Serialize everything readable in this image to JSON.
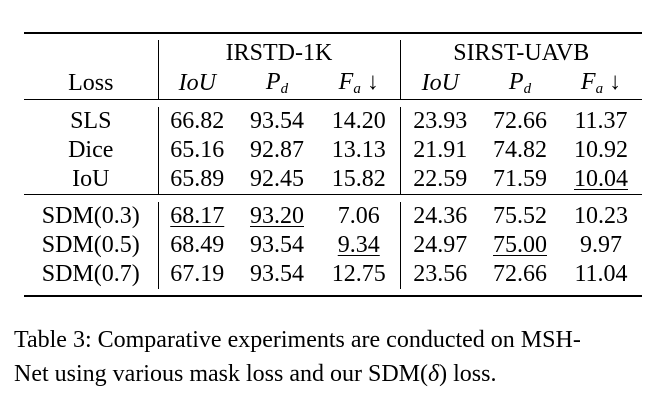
{
  "table": {
    "loss_header": "Loss",
    "groups": [
      "IRSTD-1K",
      "SIRST-UAVB"
    ],
    "metrics": [
      {
        "base": "IoU",
        "sub": "",
        "arrow": ""
      },
      {
        "base": "P",
        "sub": "d",
        "arrow": ""
      },
      {
        "base": "F",
        "sub": "a",
        "arrow": "↓"
      },
      {
        "base": "IoU",
        "sub": "",
        "arrow": ""
      },
      {
        "base": "P",
        "sub": "d",
        "arrow": ""
      },
      {
        "base": "F",
        "sub": "a",
        "arrow": "↓"
      }
    ],
    "row_groups": [
      {
        "rows": [
          {
            "loss": "SLS",
            "values": [
              "66.82",
              "93.54",
              "14.20",
              "23.93",
              "72.66",
              "11.37"
            ],
            "bold": [
              false,
              true,
              false,
              false,
              false,
              false
            ],
            "underline": [
              false,
              false,
              false,
              false,
              false,
              false
            ]
          },
          {
            "loss": "Dice",
            "values": [
              "65.16",
              "92.87",
              "13.13",
              "21.91",
              "74.82",
              "10.92"
            ],
            "bold": [
              false,
              false,
              false,
              false,
              false,
              false
            ],
            "underline": [
              false,
              false,
              false,
              false,
              false,
              false
            ]
          },
          {
            "loss": "IoU",
            "values": [
              "65.89",
              "92.45",
              "15.82",
              "22.59",
              "71.59",
              "10.04"
            ],
            "bold": [
              false,
              false,
              false,
              false,
              false,
              false
            ],
            "underline": [
              false,
              false,
              false,
              false,
              false,
              true
            ]
          }
        ]
      },
      {
        "rows": [
          {
            "loss": "SDM(0.3)",
            "values": [
              "68.17",
              "93.20",
              "7.06",
              "24.36",
              "75.52",
              "10.23"
            ],
            "bold": [
              false,
              false,
              true,
              false,
              true,
              false
            ],
            "underline": [
              true,
              true,
              false,
              false,
              false,
              false
            ]
          },
          {
            "loss": "SDM(0.5)",
            "values": [
              "68.49",
              "93.54",
              "9.34",
              "24.97",
              "75.00",
              "9.97"
            ],
            "bold": [
              true,
              true,
              false,
              true,
              false,
              true
            ],
            "underline": [
              false,
              false,
              true,
              false,
              true,
              false
            ]
          },
          {
            "loss": "SDM(0.7)",
            "values": [
              "67.19",
              "93.54",
              "12.75",
              "23.56",
              "72.66",
              "11.04"
            ],
            "bold": [
              false,
              true,
              false,
              false,
              false,
              false
            ],
            "underline": [
              false,
              false,
              false,
              false,
              false,
              false
            ]
          }
        ]
      }
    ]
  },
  "caption": {
    "line1": "Table 3: Comparative experiments are conducted on MSH-",
    "line2_prefix": "Net using various mask loss and our SDM(",
    "delta": "δ",
    "line2_suffix": ") loss."
  }
}
